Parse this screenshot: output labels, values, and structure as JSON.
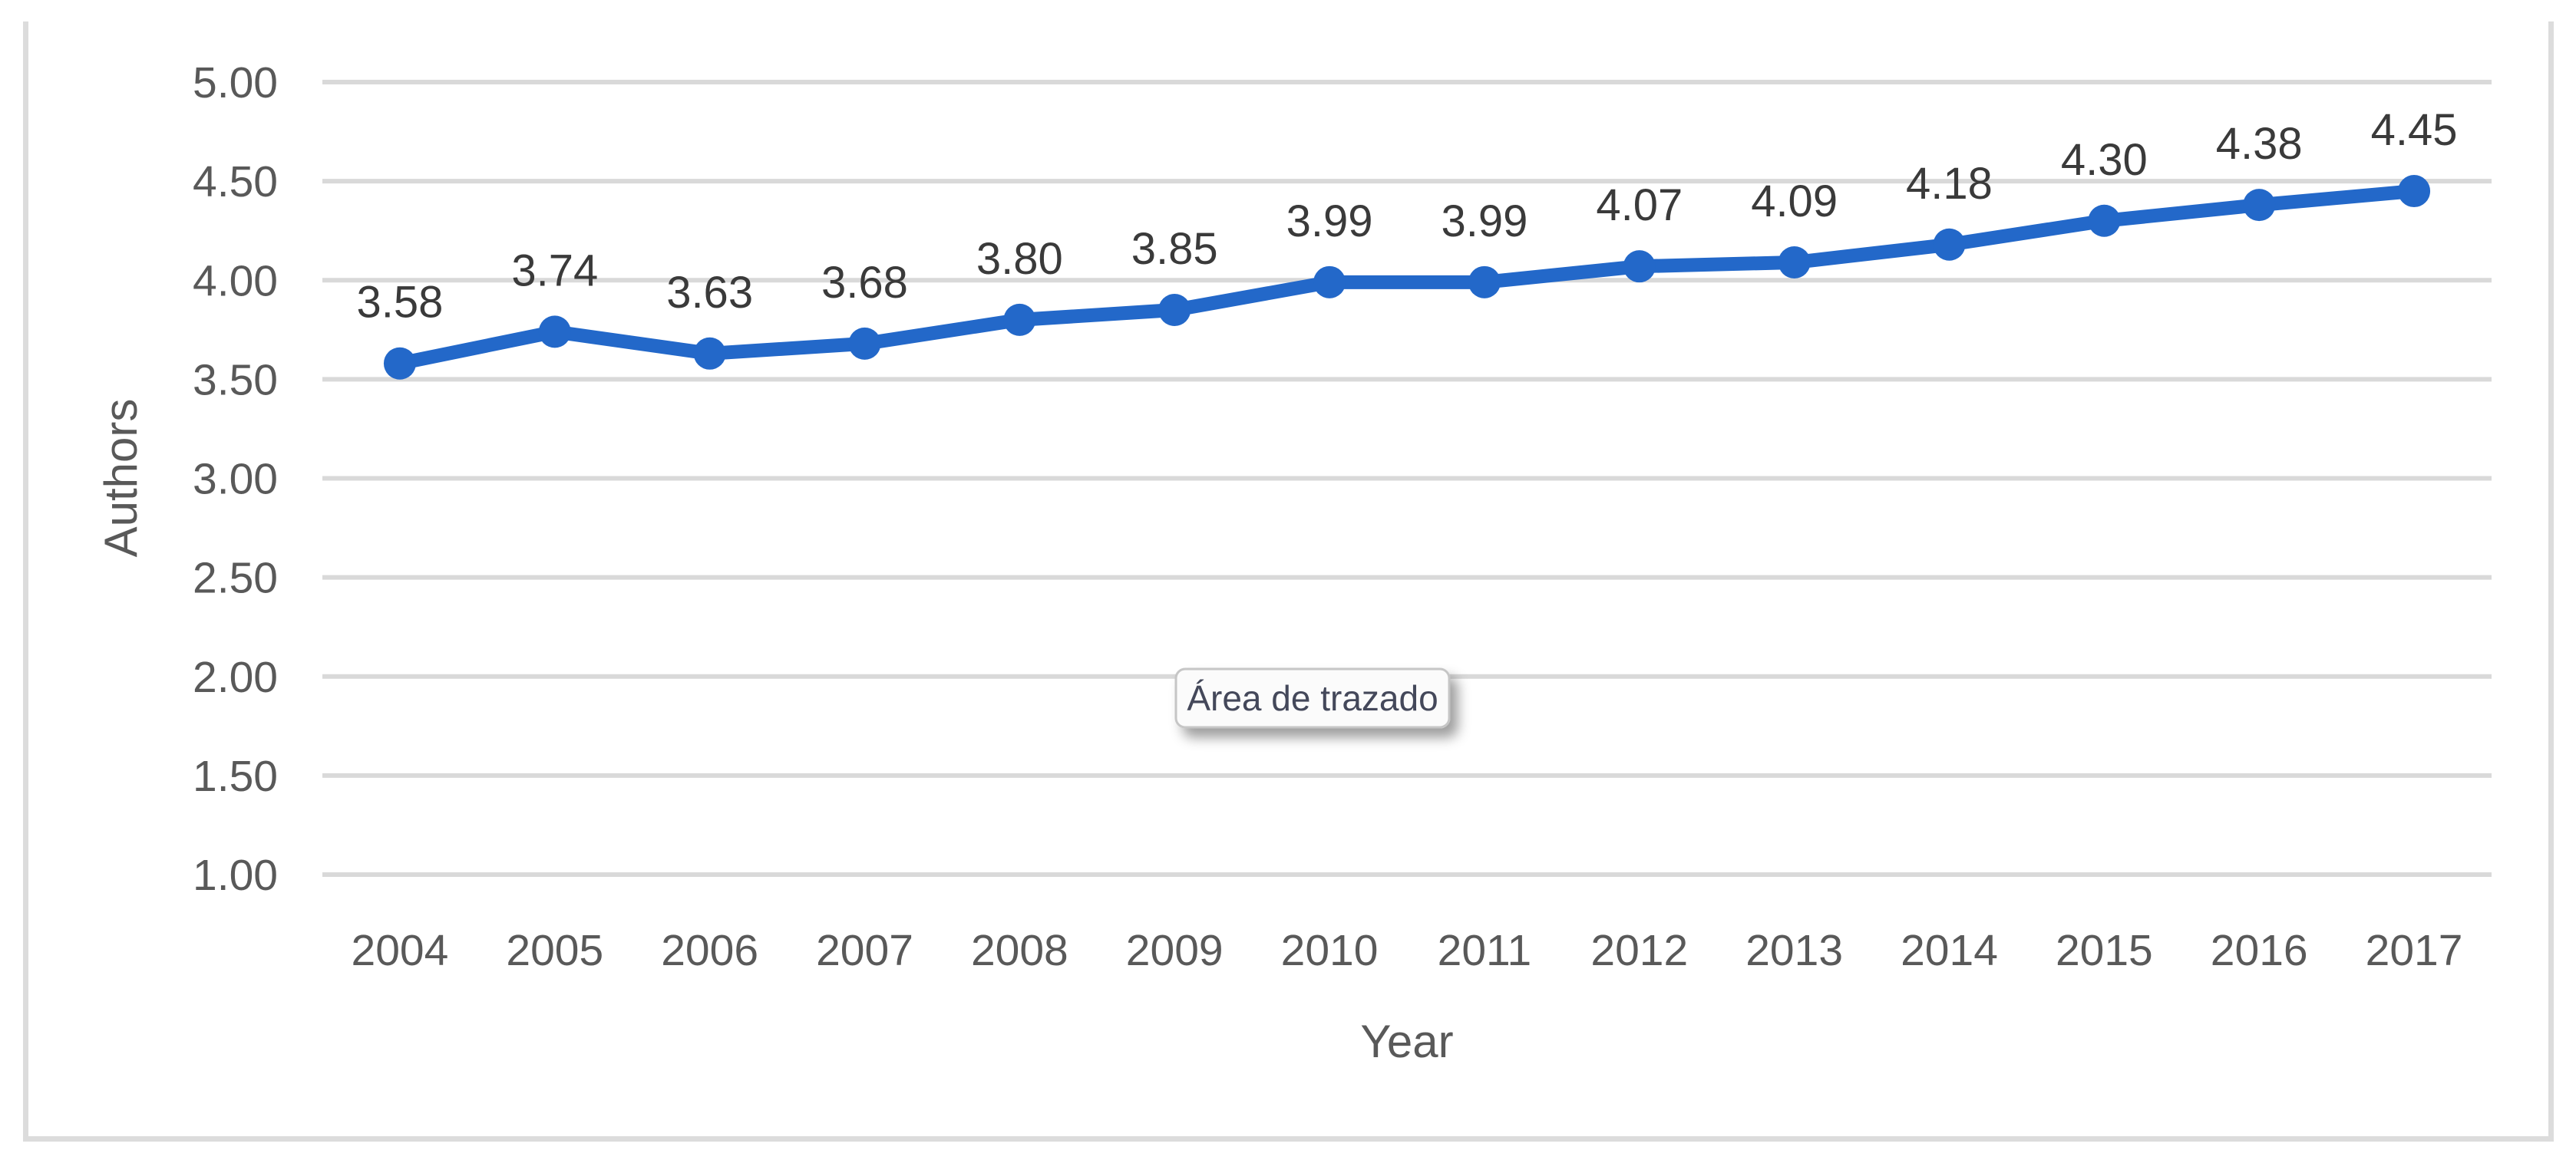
{
  "chart_data": {
    "type": "line",
    "title": "",
    "categories": [
      "2004",
      "2005",
      "2006",
      "2007",
      "2008",
      "2009",
      "2010",
      "2011",
      "2012",
      "2013",
      "2014",
      "2015",
      "2016",
      "2017"
    ],
    "series": [
      {
        "name": "Authors",
        "values": [
          3.58,
          3.74,
          3.63,
          3.68,
          3.8,
          3.85,
          3.99,
          3.99,
          4.07,
          4.09,
          4.18,
          4.3,
          4.38,
          4.45
        ],
        "data_labels": [
          "3.58",
          "3.74",
          "3.63",
          "3.68",
          "3.80",
          "3.85",
          "3.99",
          "3.99",
          "4.07",
          "4.09",
          "4.18",
          "4.30",
          "4.38",
          "4.45"
        ]
      }
    ],
    "xlabel": "Year",
    "ylabel": "Authors",
    "ylim": [
      1.0,
      5.0
    ],
    "ytick_step": 0.5,
    "yticks": [
      "5.00",
      "4.50",
      "4.00",
      "3.50",
      "3.00",
      "2.50",
      "2.00",
      "1.50",
      "1.00"
    ],
    "grid": true,
    "legend": "none",
    "line_color": "#2368c9",
    "marker": "circle",
    "gridline_color": "#d9d9d9",
    "tick_label_color": "#595959",
    "data_label_color": "#3a3a3a",
    "frame_color": "#dcdcdc"
  },
  "tooltip": {
    "label": "Área de trazado"
  }
}
